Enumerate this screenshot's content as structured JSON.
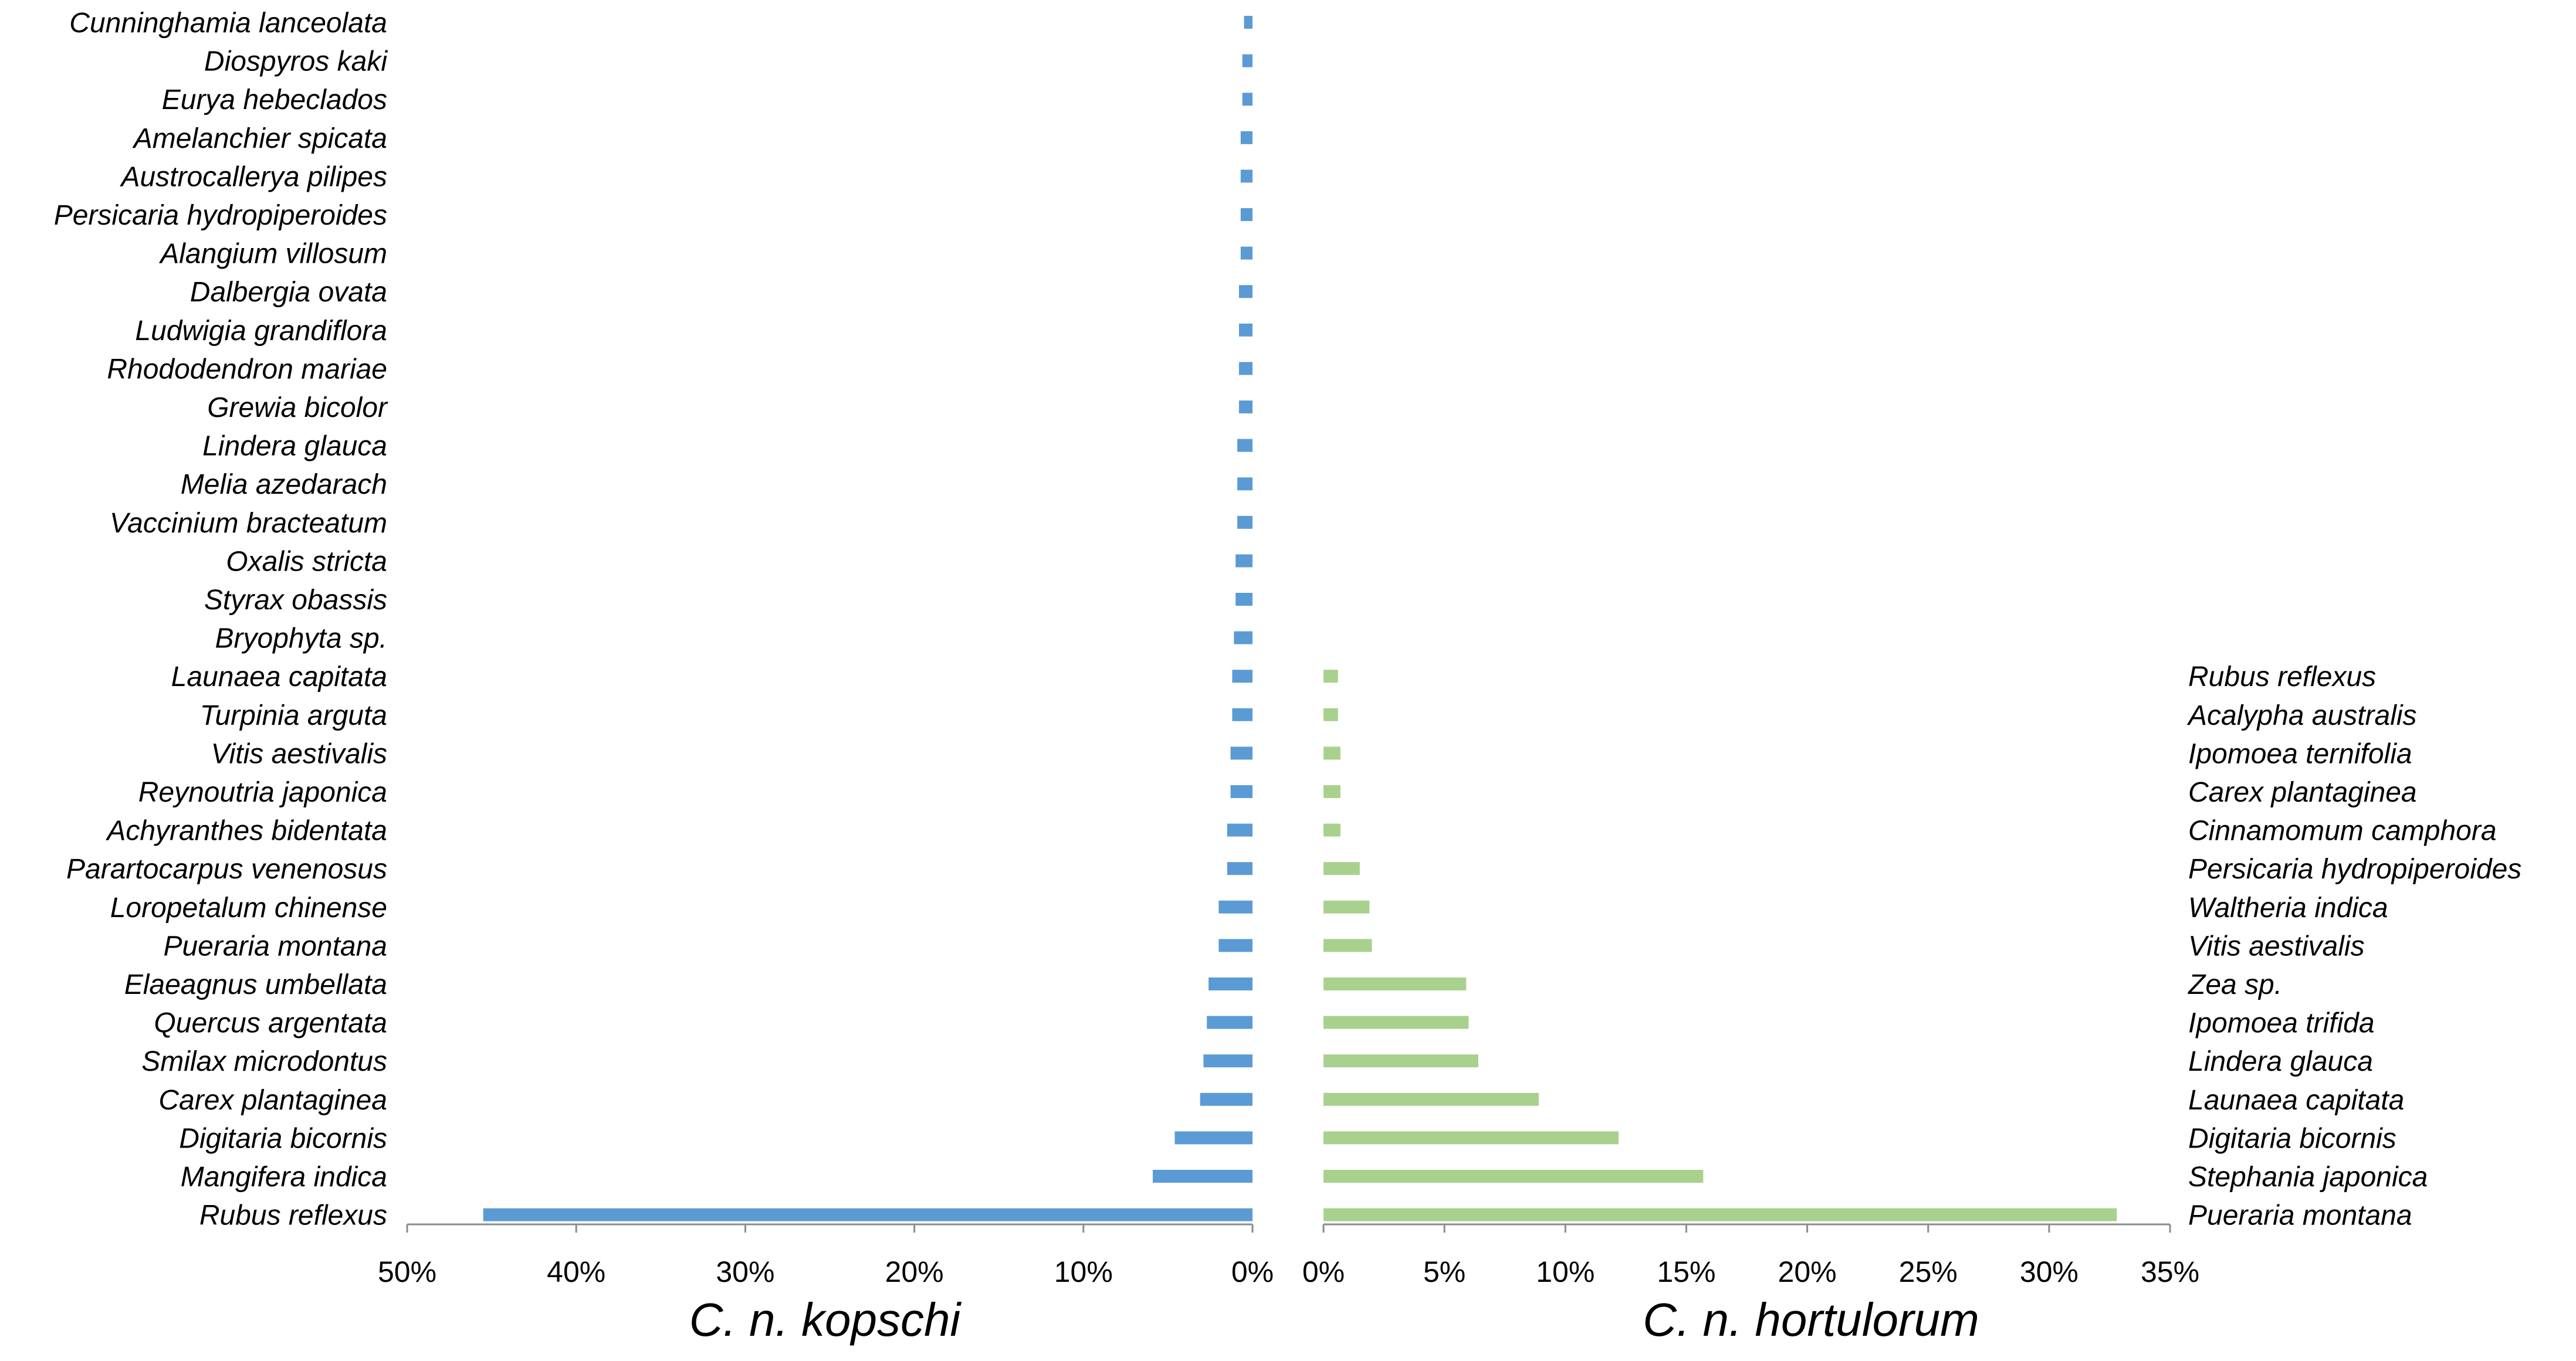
{
  "chart_data": [
    {
      "type": "bar",
      "orientation": "horizontal",
      "direction": "right-to-left",
      "xlabel": "C. n. kopschi",
      "xlim": [
        0,
        50
      ],
      "x_unit": "%",
      "x_ticks": [
        "50%",
        "40%",
        "30%",
        "20%",
        "10%",
        "0%"
      ],
      "color": "#5b9bd5",
      "categories": [
        "Cunninghamia lanceolata",
        "Diospyros kaki",
        "Eurya hebeclados",
        "Amelanchier spicata",
        "Austrocallerya pilipes",
        "Persicaria hydropiperoides",
        "Alangium villosum",
        "Dalbergia ovata",
        "Ludwigia grandiflora",
        "Rhododendron mariae",
        "Grewia bicolor",
        "Lindera glauca",
        "Melia azedarach",
        "Vaccinium bracteatum",
        "Oxalis stricta",
        "Styrax obassis",
        "Bryophyta sp.",
        "Launaea capitata",
        "Turpinia arguta",
        "Vitis aestivalis",
        "Reynoutria japonica",
        "Achyranthes bidentata",
        "Parartocarpus venenosus",
        "Loropetalum chinense",
        "Pueraria montana",
        "Elaeagnus umbellata",
        "Quercus argentata",
        "Smilax microdontus",
        "Carex plantaginea",
        "Digitaria bicornis",
        "Mangifera indica",
        "Rubus reflexus"
      ],
      "values": [
        0.5,
        0.6,
        0.6,
        0.7,
        0.7,
        0.7,
        0.7,
        0.8,
        0.8,
        0.8,
        0.8,
        0.9,
        0.9,
        0.9,
        1.0,
        1.0,
        1.1,
        1.2,
        1.2,
        1.3,
        1.3,
        1.5,
        1.5,
        2.0,
        2.0,
        2.6,
        2.7,
        2.9,
        3.1,
        4.6,
        5.9,
        45.5
      ]
    },
    {
      "type": "bar",
      "orientation": "horizontal",
      "direction": "left-to-right",
      "xlabel": "C. n. hortulorum",
      "xlim": [
        0,
        35
      ],
      "x_unit": "%",
      "x_ticks": [
        "0%",
        "5%",
        "10%",
        "15%",
        "20%",
        "25%",
        "30%",
        "35%"
      ],
      "color": "#a9d18e",
      "categories": [
        "Rubus reflexus",
        "Acalypha australis",
        "Ipomoea ternifolia",
        "Carex plantaginea",
        "Cinnamomum camphora",
        "Persicaria hydropiperoides",
        "Waltheria indica",
        "Vitis aestivalis",
        "Zea sp.",
        "Ipomoea trifida",
        "Lindera glauca",
        "Launaea capitata",
        "Digitaria bicornis",
        "Stephania japonica",
        "Pueraria montana"
      ],
      "values": [
        0.6,
        0.6,
        0.7,
        0.7,
        0.7,
        1.5,
        1.9,
        2.0,
        5.9,
        6.0,
        6.4,
        8.9,
        12.2,
        15.7,
        32.8
      ]
    }
  ]
}
